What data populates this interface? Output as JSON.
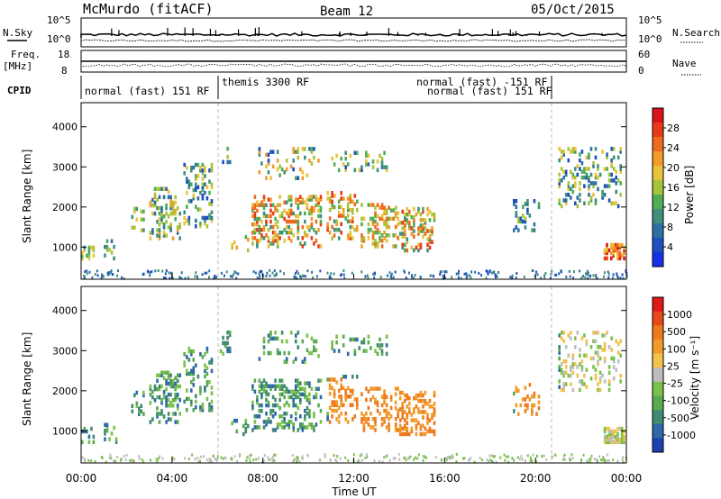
{
  "header": {
    "title": "McMurdo (fitACF)",
    "beam": "Beam 12",
    "date": "05/Oct/2015"
  },
  "top_panels": {
    "nsky_label": "N.Sky",
    "nsky_ticks": [
      "10^5",
      "10^0"
    ],
    "nsearch_label": "N.Search",
    "nsearch_ticks": [
      "10^5",
      "10^0"
    ],
    "freq_label": "Freq.",
    "freq_unit": "[MHz]",
    "freq_ticks": [
      "18",
      "8"
    ],
    "nave_label": "Nave",
    "nave_ticks": [
      "60",
      "0"
    ],
    "cpid_label": "CPID",
    "cpid_segments": [
      {
        "text": "normal (fast) 151 RF"
      },
      {
        "text": "themis 3300 RF"
      },
      {
        "text": "normal (fast) -151 RF"
      },
      {
        "text": "normal (fast) 151 RF"
      }
    ]
  },
  "chart_data": [
    {
      "type": "heatmap",
      "ylabel": "Slant Range [km]",
      "yticks": [
        "4000",
        "3000",
        "2000",
        "1000"
      ],
      "ylim": [
        200,
        4600
      ],
      "xlim": [
        0,
        24
      ],
      "colorbar": {
        "label": "Power [dB]",
        "ticks": [
          "28",
          "24",
          "20",
          "16",
          "12",
          "8",
          "4"
        ],
        "colors": [
          "#1530e6",
          "#1f4fbf",
          "#2b6fa3",
          "#3f8f7d",
          "#4fae55",
          "#a6c43a",
          "#e8c23a",
          "#f29a2a",
          "#ee6a1e",
          "#e83a18",
          "#d8141a"
        ]
      }
    },
    {
      "type": "heatmap",
      "ylabel": "Slant Range [km]",
      "yticks": [
        "4000",
        "3000",
        "2000",
        "1000"
      ],
      "ylim": [
        200,
        4600
      ],
      "xlim": [
        0,
        24
      ],
      "xlabel": "Time UT",
      "xticks": [
        "00:00",
        "04:00",
        "08:00",
        "12:00",
        "16:00",
        "20:00",
        "00:00"
      ],
      "colorbar": {
        "label": "Velocity [m s⁻¹]",
        "ticks": [
          "1000",
          "500",
          "100",
          "25",
          "-25",
          "-100",
          "-500",
          "-1000"
        ],
        "colors": [
          "#1f3fb0",
          "#2f68a8",
          "#3f8a70",
          "#5aaa50",
          "#7ac04a",
          "#bdbdbd",
          "#f2c24a",
          "#f29a2a",
          "#ee7a1e",
          "#e8481a",
          "#e01818"
        ]
      }
    }
  ]
}
